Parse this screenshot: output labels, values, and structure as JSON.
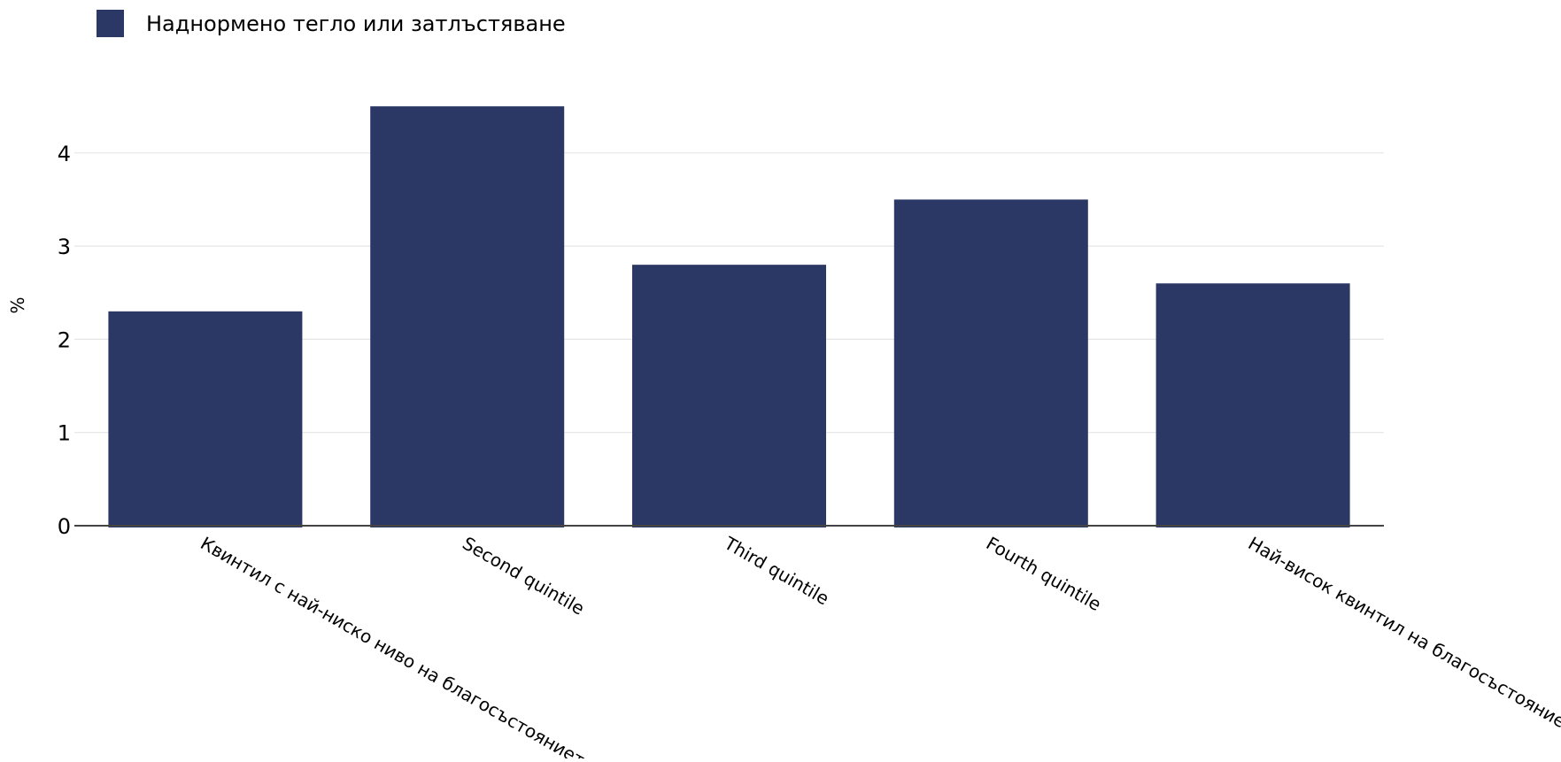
{
  "chart_data": {
    "type": "bar",
    "categories": [
      "Квинтил с най-ниско ниво на благосъстоянието",
      "Second quintile",
      "Third quintile",
      "Fourth quintile",
      "Най-висок квинтил на благосъстоянието"
    ],
    "series": [
      {
        "name": "Наднормено тегло или затлъстяване",
        "values": [
          2.3,
          4.5,
          2.8,
          3.5,
          2.6
        ],
        "color": "#2b3764"
      }
    ],
    "title": "",
    "xlabel": "",
    "ylabel": "%",
    "ylim": [
      0,
      4.7
    ],
    "yticks": [
      0,
      1,
      2,
      3,
      4
    ],
    "grid": true,
    "legend_position": "top-left"
  }
}
